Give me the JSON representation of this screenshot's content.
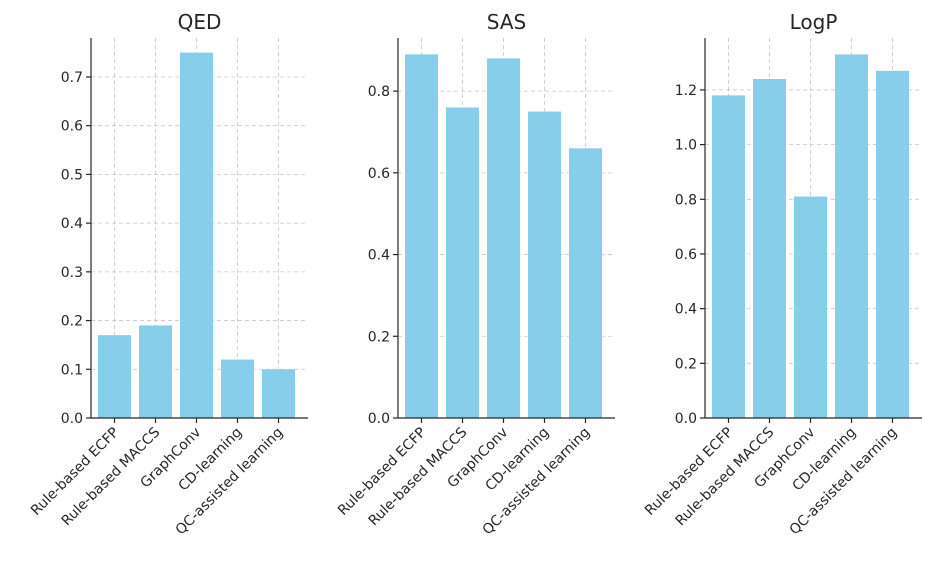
{
  "chart_data": [
    {
      "type": "bar",
      "title": "QED",
      "categories": [
        "Rule-based ECFP",
        "Rule-based MACCS",
        "GraphConv",
        "CD-learning",
        "QC-assisted learning"
      ],
      "values": [
        0.17,
        0.19,
        0.75,
        0.12,
        0.1
      ],
      "ylim": [
        0,
        0.78
      ],
      "yticks": [
        0.0,
        0.1,
        0.2,
        0.3,
        0.4,
        0.5,
        0.6,
        0.7
      ],
      "tick_labels": [
        "0.0",
        "0.1",
        "0.2",
        "0.3",
        "0.4",
        "0.5",
        "0.6",
        "0.7"
      ],
      "xlabel": "",
      "ylabel": "",
      "grid": true,
      "color": "#87CEEB"
    },
    {
      "type": "bar",
      "title": "SAS",
      "categories": [
        "Rule-based ECFP",
        "Rule-based MACCS",
        "GraphConv",
        "CD-learning",
        "QC-assisted learning"
      ],
      "values": [
        0.89,
        0.76,
        0.88,
        0.75,
        0.66
      ],
      "ylim": [
        0,
        0.93
      ],
      "yticks": [
        0.0,
        0.2,
        0.4,
        0.6,
        0.8
      ],
      "tick_labels": [
        "0.0",
        "0.2",
        "0.4",
        "0.6",
        "0.8"
      ],
      "xlabel": "",
      "ylabel": "",
      "grid": true,
      "color": "#87CEEB"
    },
    {
      "type": "bar",
      "title": "LogP",
      "categories": [
        "Rule-based ECFP",
        "Rule-based MACCS",
        "GraphConv",
        "CD-learning",
        "QC-assisted learning"
      ],
      "values": [
        1.18,
        1.24,
        0.81,
        1.33,
        1.27
      ],
      "ylim": [
        0,
        1.39
      ],
      "yticks": [
        0.0,
        0.2,
        0.4,
        0.6,
        0.8,
        1.0,
        1.2
      ],
      "tick_labels": [
        "0.0",
        "0.2",
        "0.4",
        "0.6",
        "0.8",
        "1.0",
        "1.2"
      ],
      "xlabel": "",
      "ylabel": "",
      "grid": true,
      "color": "#87CEEB"
    }
  ]
}
